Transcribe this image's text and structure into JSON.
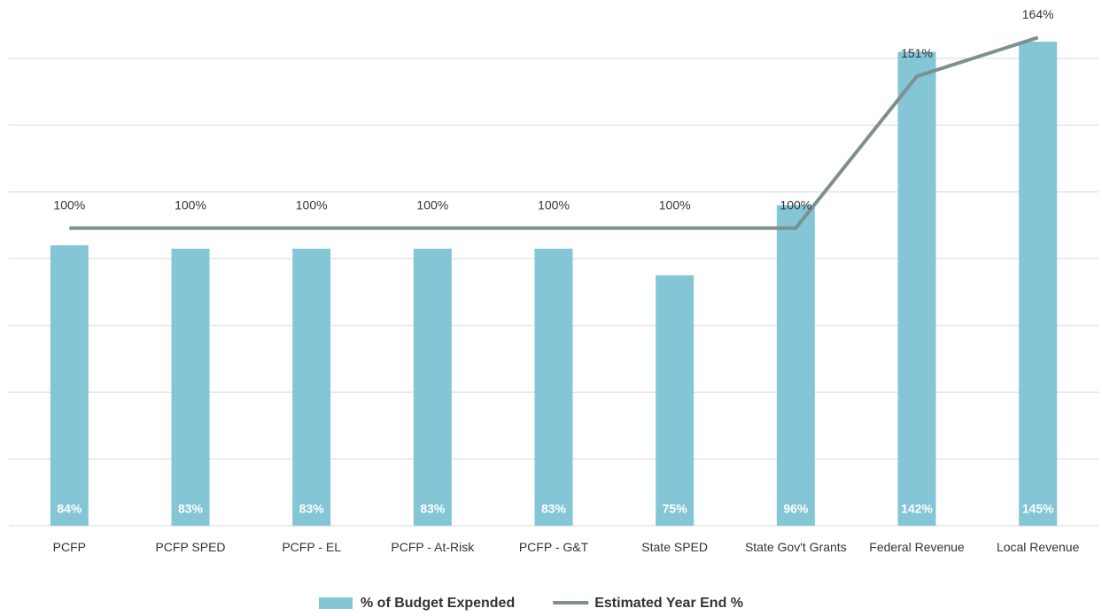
{
  "chart_data": {
    "type": "bar",
    "categories": [
      "PCFP",
      "PCFP SPED",
      "PCFP - EL",
      "PCFP - At-Risk",
      "PCFP - G&T",
      "State SPED",
      "State Gov't Grants",
      "Federal Revenue",
      "Local Revenue"
    ],
    "series": [
      {
        "name": "% of Budget Expended",
        "type": "bar",
        "color": "#84c6d6",
        "values": [
          84,
          83,
          83,
          83,
          83,
          75,
          96,
          142,
          145
        ],
        "value_labels": [
          "84%",
          "83%",
          "83%",
          "83%",
          "83%",
          "75%",
          "96%",
          "142%",
          "145%"
        ]
      },
      {
        "name": "Estimated Year End %",
        "type": "line",
        "axis": "y2",
        "color": "#7f8f8f",
        "values": [
          100,
          100,
          100,
          100,
          100,
          100,
          100,
          151,
          164
        ],
        "value_labels": [
          "100%",
          "100%",
          "100%",
          "100%",
          "100%",
          "100%",
          "100%",
          "151%",
          "164%"
        ]
      }
    ],
    "ylim": [
      0,
      140
    ],
    "yticks": [
      0,
      20,
      40,
      60,
      80,
      100,
      120,
      140
    ],
    "y2lim": [
      0,
      157
    ],
    "grid": true,
    "legend": "bottom"
  }
}
